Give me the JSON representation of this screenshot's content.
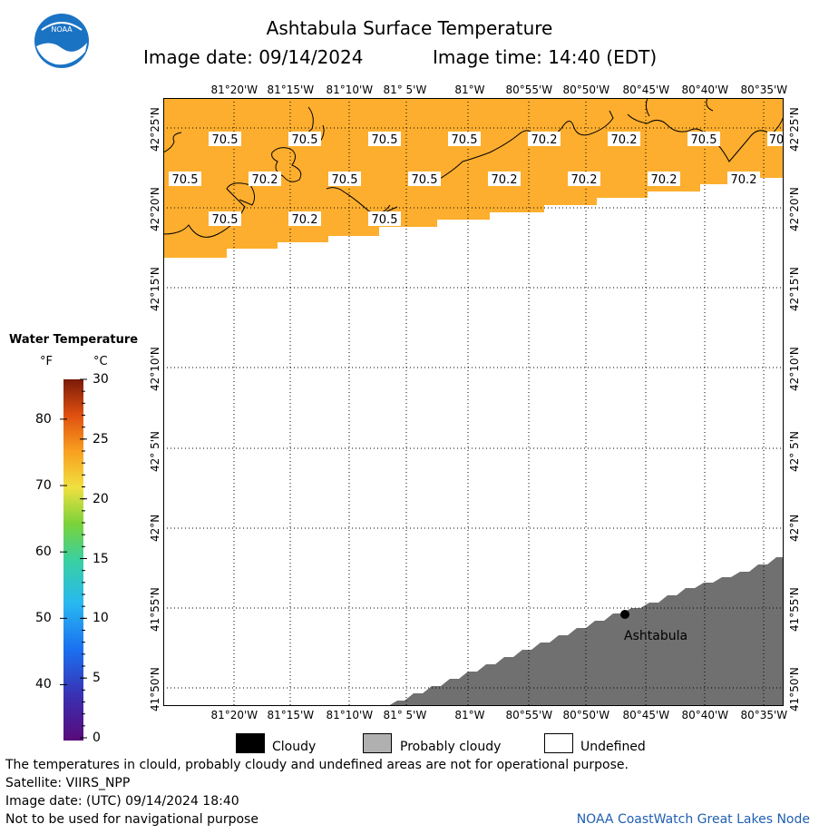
{
  "header": {
    "title": "Ashtabula Surface Temperature",
    "image_date_label": "Image date: 09/14/2024",
    "image_time_label": "Image time: 14:40 (EDT)"
  },
  "map": {
    "lon_ticks": [
      "81°20'W",
      "81°15'W",
      "81°10'W",
      "81° 5'W",
      "81°W",
      "80°55'W",
      "80°50'W",
      "80°45'W",
      "80°40'W",
      "80°35'W"
    ],
    "lat_ticks": [
      "42°25'N",
      "42°20'N",
      "42°15'N",
      "42°10'N",
      "42° 5'N",
      "42°N",
      "41°55'N",
      "41°50'N"
    ],
    "temperature_labels": [
      {
        "text": "70.5"
      },
      {
        "text": "70.5"
      },
      {
        "text": "70.5"
      },
      {
        "text": "70.5"
      },
      {
        "text": "70.2"
      },
      {
        "text": "70.2"
      },
      {
        "text": "70.5"
      },
      {
        "text": "70"
      },
      {
        "text": "70.5"
      },
      {
        "text": "70.2"
      },
      {
        "text": "70.5"
      },
      {
        "text": "70.5"
      },
      {
        "text": "70.2"
      },
      {
        "text": "70.2"
      },
      {
        "text": "70.2"
      },
      {
        "text": "70.2"
      },
      {
        "text": "70.5"
      },
      {
        "text": "70.2"
      },
      {
        "text": "70.5"
      }
    ],
    "city": "Ashtabula",
    "colors": {
      "water_orange": "#fdae2e",
      "land_gray": "#707070",
      "undefined": "#ffffff"
    }
  },
  "legend": {
    "title": "Water Temperature",
    "unit_f": "°F",
    "unit_c": "°C",
    "f_ticks": [
      "80",
      "70",
      "60",
      "50",
      "40"
    ],
    "c_ticks": [
      "30",
      "25",
      "20",
      "15",
      "10",
      "5",
      "0"
    ]
  },
  "key": {
    "cloudy": "Cloudy",
    "probably_cloudy": "Probably cloudy",
    "undefined": "Undefined"
  },
  "footer": {
    "note": "The temperatures in clould, probably cloudy and undefined areas are not for operational purpose.",
    "satellite": "Satellite: VIIRS_NPP",
    "utc_date": "Image date: (UTC) 09/14/2024   18:40",
    "nav_warning": "Not to be used for navigational purpose",
    "credit": "NOAA CoastWatch Great Lakes Node",
    "logo_text": "NOAA"
  }
}
